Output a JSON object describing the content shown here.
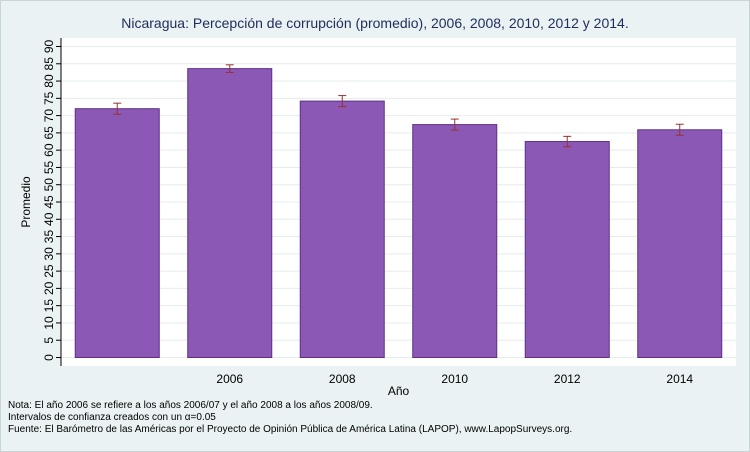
{
  "chart_data": {
    "type": "bar",
    "title": "Nicaragua: Percepción de corrupción (promedio), 2006, 2008, 2010, 2012 y 2014.",
    "xlabel": "Año",
    "ylabel": "Promedio",
    "categories": [
      "",
      "2006",
      "2008",
      "2010",
      "2012",
      "2014"
    ],
    "values": [
      72.0,
      83.6,
      74.2,
      67.4,
      62.5,
      65.9
    ],
    "ci_low": [
      70.4,
      82.5,
      72.6,
      65.8,
      61.0,
      64.3
    ],
    "ci_high": [
      73.6,
      84.7,
      75.8,
      69.0,
      64.0,
      67.5
    ],
    "ylim": [
      0,
      90
    ],
    "yticks": [
      0,
      5,
      10,
      15,
      20,
      25,
      30,
      35,
      40,
      45,
      50,
      55,
      60,
      65,
      70,
      75,
      80,
      85,
      90
    ],
    "grid": true,
    "bar_color": "#8b59b5",
    "bar_edge_color": "#5f2f86",
    "error_bar_color": "#9a3030",
    "plot_background": "#ffffff",
    "page_background": "#eaf2f3",
    "title_color": "#1e2d5a"
  },
  "notes": [
    "Nota: El año 2006 se refiere a los años 2006/07 y el año 2008 a los años 2008/09.",
    "Intervalos de confianza creados con un α=0.05",
    "Fuente: El Barómetro de las Américas por el Proyecto de Opinión Pública de América Latina (LAPOP), www.LapopSurveys.org."
  ]
}
